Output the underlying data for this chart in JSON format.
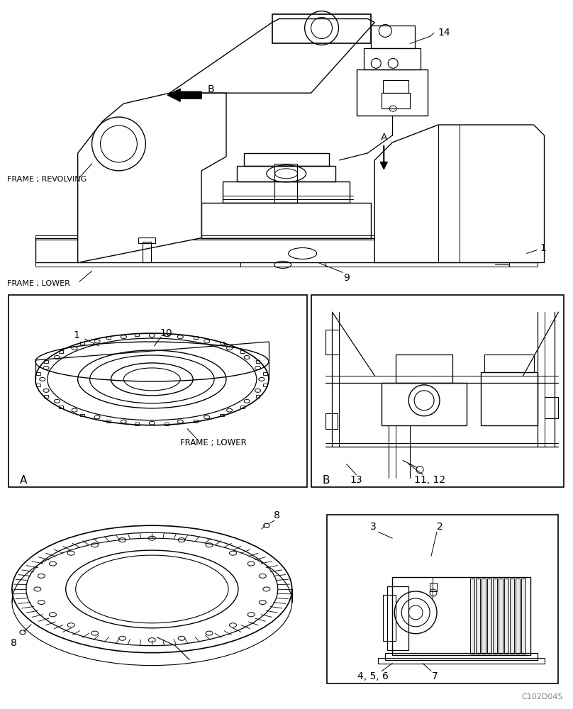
{
  "bg_color": "#ffffff",
  "line_color": "#000000",
  "fig_width": 8.08,
  "fig_height": 10.0,
  "dpi": 100,
  "watermark": "C102D045",
  "labels": {
    "frame_revolving": "FRAME ; REVOLVING",
    "frame_lower_top": "FRAME ; LOWER",
    "frame_lower_boxA": "FRAME ; LOWER",
    "label_A_arrow": "A",
    "label_B_arrow": "B",
    "label_1_top": "1",
    "label_9": "9",
    "label_14": "14",
    "box_A_label": "A",
    "box_B_label": "B",
    "label_1_boxA": "1",
    "label_10_boxA": "10",
    "label_13": "13",
    "label_11_12": "11, 12",
    "label_8_top": "8",
    "label_8_left": "8",
    "label_2": "2",
    "label_3": "3",
    "label_4_5_6": "4, 5, 6",
    "label_7": "7"
  }
}
